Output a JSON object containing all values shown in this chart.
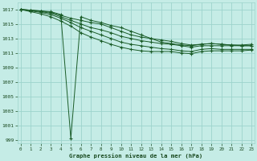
{
  "title": "Graphe pression niveau de la mer (hPa)",
  "bg_color": "#c5ece6",
  "grid_color": "#9dd4cc",
  "line_color": "#1a5c28",
  "ylim": [
    998.5,
    1018.0
  ],
  "ytick_vals": [
    999,
    1001,
    1003,
    1005,
    1007,
    1009,
    1011,
    1013,
    1015,
    1017
  ],
  "xlim": [
    -0.3,
    23.3
  ],
  "xticks": [
    0,
    1,
    2,
    3,
    4,
    5,
    6,
    7,
    8,
    9,
    10,
    11,
    12,
    13,
    14,
    15,
    16,
    17,
    18,
    19,
    20,
    21,
    22,
    23
  ],
  "series": [
    [
      1017.0,
      1016.9,
      1016.8,
      1016.7,
      1016.3,
      999.2,
      1016.0,
      1015.5,
      1015.2,
      1014.8,
      1014.5,
      1014.0,
      1013.5,
      1013.0,
      1012.5,
      1012.3,
      1012.1,
      1012.0,
      1012.2,
      1012.3,
      1012.2,
      1012.1,
      1012.0,
      1012.0
    ],
    [
      1017.0,
      1016.9,
      1016.8,
      1016.6,
      1016.2,
      1015.8,
      1015.5,
      1015.2,
      1015.0,
      1014.5,
      1014.0,
      1013.5,
      1013.2,
      1013.0,
      1012.8,
      1012.6,
      1012.3,
      1012.1,
      1012.2,
      1012.3,
      1012.2,
      1012.1,
      1012.1,
      1012.2
    ],
    [
      1017.0,
      1016.9,
      1016.7,
      1016.5,
      1016.0,
      1015.5,
      1015.0,
      1014.5,
      1014.2,
      1013.8,
      1013.3,
      1013.0,
      1012.7,
      1012.5,
      1012.3,
      1012.2,
      1012.0,
      1011.8,
      1012.0,
      1012.0,
      1012.0,
      1012.0,
      1012.0,
      1012.0
    ],
    [
      1017.0,
      1016.8,
      1016.6,
      1016.3,
      1015.8,
      1015.2,
      1014.5,
      1014.0,
      1013.5,
      1013.0,
      1012.5,
      1012.2,
      1012.0,
      1011.8,
      1011.6,
      1011.5,
      1011.3,
      1011.2,
      1011.5,
      1011.6,
      1011.5,
      1011.5,
      1011.5,
      1011.5
    ],
    [
      1017.0,
      1016.7,
      1016.4,
      1016.0,
      1015.4,
      1014.7,
      1013.8,
      1013.2,
      1012.7,
      1012.2,
      1011.8,
      1011.5,
      1011.3,
      1011.2,
      1011.2,
      1011.2,
      1011.0,
      1010.9,
      1011.2,
      1011.3,
      1011.3,
      1011.3,
      1011.3,
      1011.4
    ]
  ]
}
